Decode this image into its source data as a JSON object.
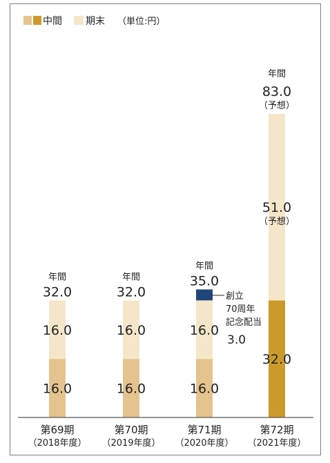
{
  "legend": {
    "interim_label": "中間",
    "final_label": "期末",
    "unit_label": "（単位:円）"
  },
  "chart_data": {
    "type": "bar",
    "stacked": true,
    "unit": "円",
    "categories": [
      {
        "label": "第69期",
        "sub": "（2018年度）"
      },
      {
        "label": "第70期",
        "sub": "（2019年度）"
      },
      {
        "label": "第71期",
        "sub": "（2020年度）"
      },
      {
        "label": "第72期",
        "sub": "（2021年度）"
      }
    ],
    "series": [
      {
        "name": "中間",
        "values": [
          16.0,
          16.0,
          16.0,
          32.0
        ],
        "labels": [
          "16.0",
          "16.0",
          "16.0",
          "32.0"
        ]
      },
      {
        "name": "期末",
        "values": [
          16.0,
          16.0,
          16.0,
          51.0
        ],
        "labels": [
          "16.0",
          "16.0",
          "16.0",
          "51.0"
        ],
        "sub_labels": [
          "",
          "",
          "",
          "（予想）"
        ]
      },
      {
        "name": "創立70周年記念配当",
        "values": [
          0,
          0,
          3.0,
          0
        ],
        "labels": [
          "",
          "",
          "3.0",
          ""
        ]
      }
    ],
    "totals": {
      "caption": "年間",
      "values": [
        32.0,
        32.0,
        35.0,
        83.0
      ],
      "labels": [
        "32.0",
        "32.0",
        "35.0",
        "83.0"
      ],
      "notes": [
        "",
        "",
        "",
        "（予想）"
      ]
    },
    "annotation": {
      "lines": [
        "創立",
        "70周年",
        "記念配当"
      ],
      "value": "3.0"
    },
    "colors": {
      "interim_light": "#e5c38e",
      "interim_dark": "#cc9a2a",
      "final": "#f5e6c9",
      "commemorative": "#22467a"
    },
    "ylim": [
      0,
      83
    ]
  }
}
